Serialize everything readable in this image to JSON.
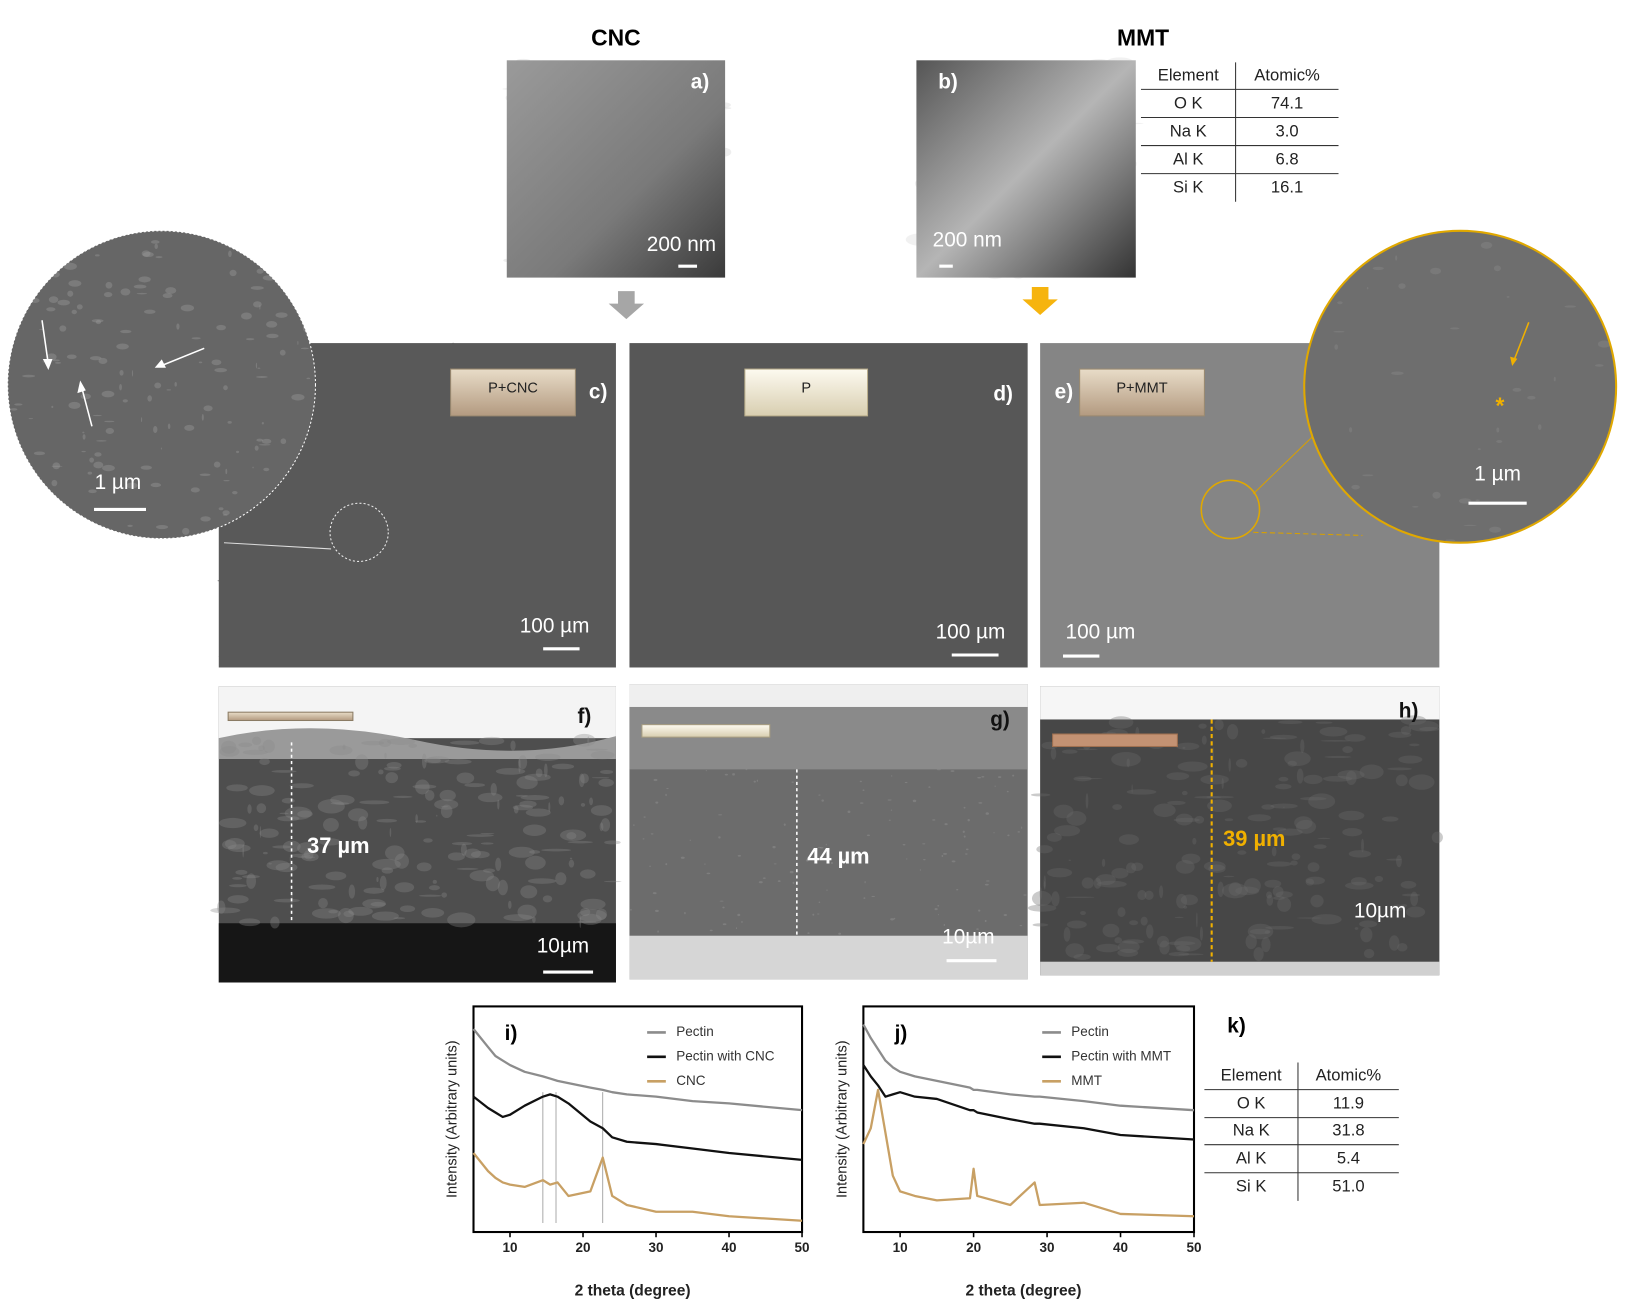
{
  "figure": {
    "column_titles": [
      "CNC",
      "MMT"
    ],
    "images": [
      {
        "label": "a)",
        "scale_bar": "200 nm"
      },
      {
        "label": "b)",
        "scale_bar": "200 nm"
      },
      {
        "label": "c)",
        "sample": "P+CNC",
        "scale_bar": "100 µm",
        "inset_scale_bar": "1 µm"
      },
      {
        "label": "d)",
        "sample": "P",
        "scale_bar": "100 µm"
      },
      {
        "label": "e)",
        "sample": "P+MMT",
        "scale_bar": "100 µm",
        "inset_scale_bar": "1 µm"
      },
      {
        "label": "f)",
        "thickness": "37 µm",
        "scale_bar": "10µm"
      },
      {
        "label": "g)",
        "thickness": "44 µm",
        "scale_bar": "10µm"
      },
      {
        "label": "h)",
        "thickness": "39 µm",
        "scale_bar": "10µm"
      }
    ],
    "tables": [
      {
        "header": [
          "Element",
          "Atomic%"
        ],
        "rows": [
          [
            "O K",
            "74.1"
          ],
          [
            "Na K",
            "3.0"
          ],
          [
            "Al K",
            "6.8"
          ],
          [
            "Si K",
            "16.1"
          ]
        ]
      },
      {
        "label": "k)",
        "header": [
          "Element",
          "Atomic%"
        ],
        "rows": [
          [
            "O K",
            "11.9"
          ],
          [
            "Na K",
            "31.8"
          ],
          [
            "Al K",
            "5.4"
          ],
          [
            "Si K",
            "51.0"
          ]
        ]
      }
    ]
  },
  "chart_data": [
    {
      "type": "line",
      "panel_label": "i)",
      "x_label": "2 theta (degree)",
      "y_label": "Intensity (Arbitrary units)",
      "x": [
        5,
        7,
        8,
        9,
        10,
        12,
        14.5,
        15.5,
        16.5,
        18,
        21,
        22.7,
        24,
        26,
        30,
        35,
        40,
        50
      ],
      "series": [
        {
          "name": "Pectin",
          "color": "#8c8c8c",
          "values": [
            90,
            82,
            78,
            76,
            74,
            71,
            69,
            68,
            67,
            66,
            64,
            63,
            62,
            61,
            60,
            58,
            57,
            54
          ]
        },
        {
          "name": "Pectin with CNC",
          "color": "#111111",
          "values": [
            60,
            55,
            53,
            51,
            52,
            56,
            60,
            61,
            60,
            57,
            49,
            46,
            42,
            40,
            39,
            37,
            35,
            32
          ]
        },
        {
          "name": "CNC",
          "color": "#c8a064",
          "values": [
            35,
            27,
            24,
            22,
            21,
            20,
            23,
            21,
            22,
            16,
            18,
            33,
            16,
            12,
            9,
            9,
            7,
            5
          ]
        }
      ],
      "reference_lines": [
        14.5,
        16.3,
        22.7
      ],
      "xlim": [
        5,
        50
      ],
      "xticks": [
        10,
        20,
        30,
        40,
        50
      ],
      "ylim": [
        0,
        100
      ]
    },
    {
      "type": "line",
      "panel_label": "j)",
      "x_label": "2 theta (degree)",
      "y_label": "Intensity (Arbitrary units)",
      "x": [
        5,
        6,
        7,
        8,
        9,
        10,
        12,
        15,
        19.5,
        20,
        20.5,
        25,
        28.3,
        29,
        35,
        40,
        50
      ],
      "series": [
        {
          "name": "Pectin",
          "color": "#8c8c8c",
          "values": [
            92,
            86,
            81,
            76,
            73,
            71,
            69,
            67,
            64,
            63,
            63,
            61,
            60,
            60,
            58,
            56,
            54
          ]
        },
        {
          "name": "Pectin with MMT",
          "color": "#111111",
          "values": [
            74,
            69,
            65,
            60,
            61,
            62,
            60,
            59,
            54,
            54,
            53,
            50,
            48,
            48,
            46,
            43,
            41
          ]
        },
        {
          "name": "MMT",
          "color": "#c8a064",
          "values": [
            39,
            46,
            63,
            44,
            25,
            18,
            16,
            14,
            15,
            28,
            16,
            12,
            22,
            12,
            13,
            8,
            7
          ]
        }
      ],
      "xlim": [
        5,
        50
      ],
      "xticks": [
        10,
        20,
        30,
        40,
        50
      ],
      "ylim": [
        0,
        100
      ]
    }
  ]
}
